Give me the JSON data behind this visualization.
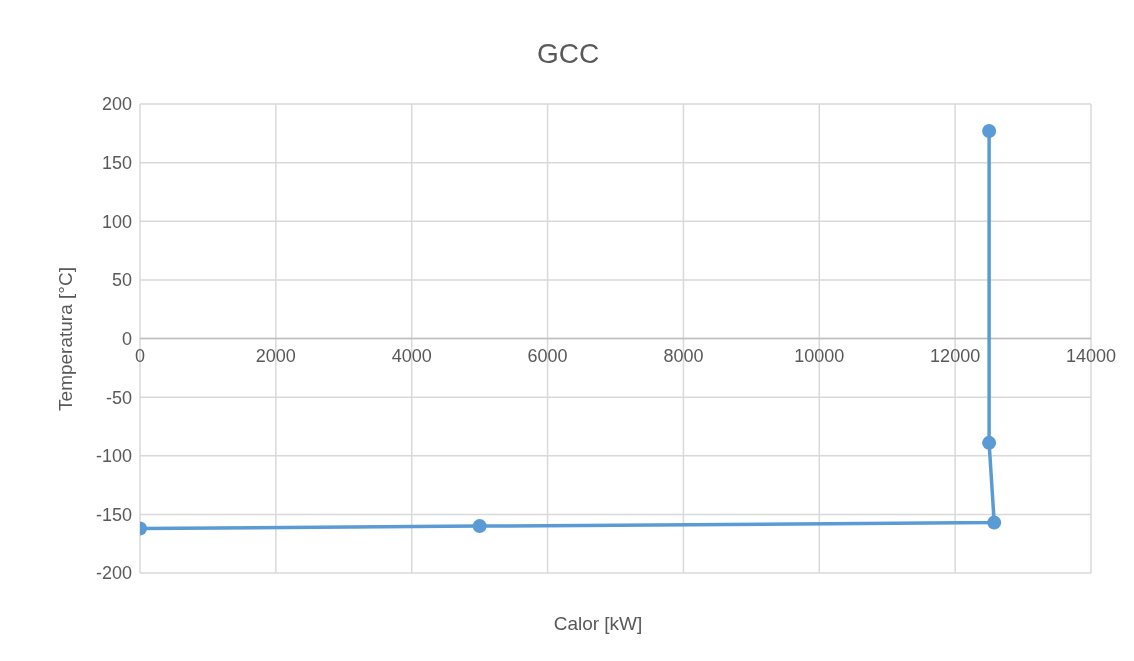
{
  "chart_data": {
    "type": "line",
    "title": "GCC",
    "xlabel": "Calor [kW]",
    "ylabel": "Temperatura [°C]",
    "x": [
      0,
      5000,
      12575,
      12500,
      12500
    ],
    "series": [
      {
        "color": "#5b9bd5",
        "values": [
          -162,
          -160,
          -157,
          -89,
          177
        ]
      }
    ],
    "xlim": [
      0,
      14000
    ],
    "xticks": [
      0,
      2000,
      4000,
      6000,
      8000,
      10000,
      12000,
      14000
    ],
    "ylim": [
      -200,
      200
    ],
    "yticks": [
      -200,
      -150,
      -100,
      -50,
      0,
      50,
      100,
      150,
      200
    ],
    "grid": true,
    "marker": "circle",
    "line_style": "solid"
  }
}
